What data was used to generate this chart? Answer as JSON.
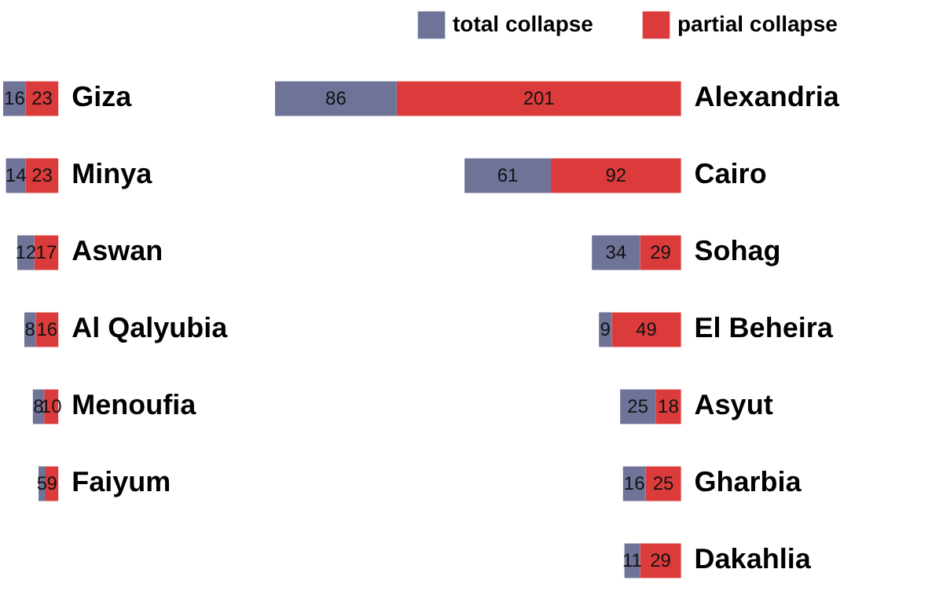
{
  "chart_data": [
    {
      "type": "bar",
      "orientation": "horizontal",
      "stacked": true,
      "data_labels": true,
      "legend": "top right",
      "categories": [
        "Giza",
        "Minya",
        "Aswan",
        "Al Qalyubia",
        "Menoufia",
        "Faiyum"
      ],
      "series": [
        {
          "name": "partial collapse",
          "color": "#dc3b3b",
          "values": [
            23,
            23,
            17,
            16,
            10,
            9
          ]
        },
        {
          "name": "total collapse",
          "color": "#6f7398",
          "values": [
            16,
            14,
            12,
            8,
            8,
            5
          ]
        }
      ]
    },
    {
      "type": "bar",
      "orientation": "horizontal",
      "stacked": true,
      "data_labels": true,
      "legend": "top right",
      "categories": [
        "Alexandria",
        "Cairo",
        "Sohag",
        "El Beheira",
        "Asyut",
        "Gharbia",
        "Dakahlia"
      ],
      "series": [
        {
          "name": "partial collapse",
          "color": "#dc3b3b",
          "values": [
            201,
            92,
            29,
            49,
            18,
            25,
            29
          ]
        },
        {
          "name": "total collapse",
          "color": "#6f7398",
          "values": [
            86,
            61,
            34,
            9,
            25,
            16,
            11
          ]
        }
      ]
    }
  ]
}
